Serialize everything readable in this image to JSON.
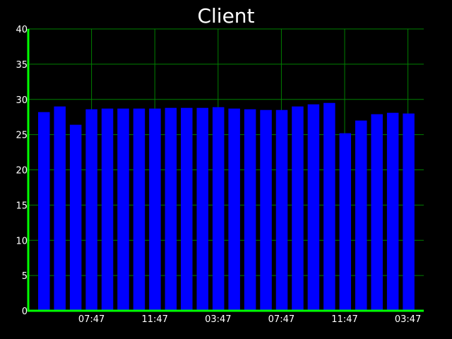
{
  "chart_data": {
    "type": "bar",
    "title": "Client",
    "xlabel": "",
    "ylabel": "",
    "ylim": [
      0,
      40
    ],
    "yticks": [
      0,
      5,
      10,
      15,
      20,
      25,
      30,
      35,
      40
    ],
    "xtick_labels": [
      "07:47",
      "11:47",
      "03:47",
      "07:47",
      "11:47",
      "03:47"
    ],
    "grid": true,
    "values": [
      28.2,
      29.0,
      26.4,
      28.6,
      28.7,
      28.7,
      28.7,
      28.7,
      28.8,
      28.8,
      28.8,
      28.9,
      28.7,
      28.6,
      28.5,
      28.5,
      29.0,
      29.3,
      29.5,
      25.2,
      27.0,
      27.9,
      28.1,
      28.0
    ],
    "colors": {
      "background": "#000000",
      "bar": "#0000ff",
      "grid": "#008000",
      "axis": "#00ff00",
      "text": "#ffffff"
    }
  }
}
